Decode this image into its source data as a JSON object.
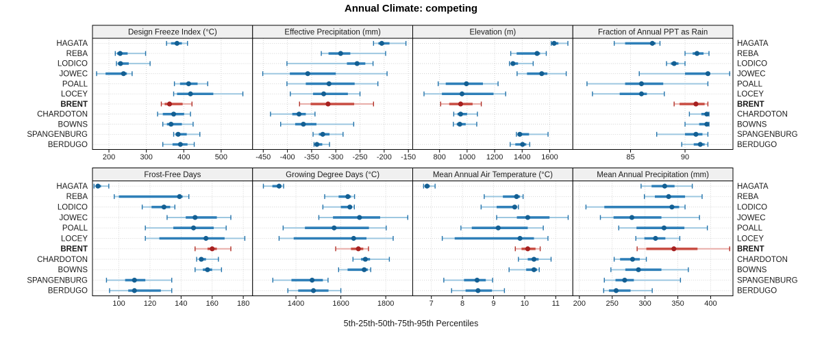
{
  "title": "Annual Climate: competing",
  "caption": "5th-25th-50th-75th-95th Percentiles",
  "colors": {
    "normal": {
      "range_5_95": "#9dc7e0",
      "box_25_75": "#2e7fb8",
      "median_dot": "#135f93",
      "cap": "#2272aa"
    },
    "highlight": {
      "range_5_95": "#e8aca7",
      "box_25_75": "#c94f45",
      "median_dot": "#a62020",
      "cap": "#b23027"
    },
    "grid": "#c9c9c9",
    "panel_border": "#000000",
    "header_bg": "#f0f0f0",
    "text": "#1a1a1a"
  },
  "chart_data": {
    "type": "trellis-dotplot-percentiles",
    "percentile_labels": [
      "5th",
      "25th",
      "50th",
      "75th",
      "95th"
    ],
    "layout": {
      "rows": 2,
      "cols": 4,
      "grid": "dotted",
      "site_labels": "both-sides"
    },
    "highlight_site": "BRENT",
    "sites": [
      "HAGATA",
      "REBA",
      "LODICO",
      "JOWEC",
      "POALL",
      "LOCEY",
      "BRENT",
      "CHARDOTON",
      "BOWNS",
      "SPANGENBURG",
      "BERDUGO"
    ],
    "panels": [
      {
        "label": "Design Freeze Index (°C)",
        "xlim": [
          156,
          584
        ],
        "ticks": [
          200,
          300,
          400,
          500
        ],
        "data": [
          [
            354,
            366,
            382,
            395,
            410
          ],
          [
            217,
            222,
            230,
            250,
            298
          ],
          [
            220,
            224,
            231,
            253,
            310
          ],
          [
            167,
            191,
            239,
            248,
            262
          ],
          [
            375,
            390,
            413,
            437,
            464
          ],
          [
            373,
            382,
            418,
            479,
            558
          ],
          [
            340,
            349,
            362,
            397,
            422
          ],
          [
            330,
            344,
            373,
            401,
            418
          ],
          [
            344,
            355,
            366,
            395,
            425
          ],
          [
            373,
            378,
            385,
            408,
            443
          ],
          [
            344,
            370,
            391,
            410,
            428
          ]
        ]
      },
      {
        "label": "Effective Precipitation (mm)",
        "xlim": [
          -472,
          -141
        ],
        "ticks": [
          -450,
          -400,
          -350,
          -300,
          -250,
          -200,
          -150
        ],
        "data": [
          [
            -222,
            -212,
            -205,
            -189,
            -155
          ],
          [
            -330,
            -315,
            -290,
            -270,
            -197
          ],
          [
            -401,
            -277,
            -256,
            -239,
            -223
          ],
          [
            -451,
            -395,
            -358,
            -300,
            -194
          ],
          [
            -401,
            -362,
            -314,
            -261,
            -213
          ],
          [
            -394,
            -347,
            -325,
            -275,
            -250
          ],
          [
            -375,
            -352,
            -316,
            -262,
            -222
          ],
          [
            -435,
            -390,
            -376,
            -362,
            -343
          ],
          [
            -414,
            -384,
            -367,
            -340,
            -263
          ],
          [
            -347,
            -335,
            -327,
            -313,
            -285
          ],
          [
            -345,
            -343,
            -339,
            -328,
            -313
          ]
        ]
      },
      {
        "label": "Elevation (m)",
        "xlim": [
          605,
          1768
        ],
        "ticks": [
          800,
          1000,
          1200,
          1400,
          1600
        ],
        "data": [
          [
            1611,
            1618,
            1632,
            1663,
            1732
          ],
          [
            1317,
            1360,
            1508,
            1530,
            1575
          ],
          [
            1308,
            1318,
            1333,
            1370,
            1480
          ],
          [
            1363,
            1435,
            1542,
            1583,
            1720
          ],
          [
            790,
            845,
            995,
            1115,
            1225
          ],
          [
            687,
            817,
            963,
            1192,
            1280
          ],
          [
            808,
            870,
            953,
            1040,
            1103
          ],
          [
            903,
            930,
            953,
            1000,
            1075
          ],
          [
            900,
            925,
            947,
            990,
            1070
          ],
          [
            1358,
            1370,
            1383,
            1450,
            1588
          ],
          [
            1313,
            1350,
            1403,
            1430,
            1455
          ]
        ]
      },
      {
        "label": "Fraction of Annual PPT as Rain",
        "xlim": [
          79.7,
          94.4
        ],
        "ticks": [
          85,
          90
        ],
        "data": [
          [
            83.5,
            84.5,
            87,
            87.3,
            87.7
          ],
          [
            90,
            90.7,
            91.1,
            91.7,
            92.2
          ],
          [
            88.3,
            88.7,
            89,
            89.4,
            90
          ],
          [
            85.8,
            90,
            92.1,
            92.3,
            94.1
          ],
          [
            81,
            84.5,
            86,
            88,
            92.1
          ],
          [
            81.5,
            84,
            86,
            86.5,
            88.1
          ],
          [
            89,
            89.5,
            91,
            91.8,
            92.1
          ],
          [
            90.4,
            91.5,
            92,
            92.1,
            92.2
          ],
          [
            90,
            91.3,
            92,
            92.1,
            92.2
          ],
          [
            87.4,
            90,
            91,
            91.6,
            92.1
          ],
          [
            89.7,
            90.8,
            91.4,
            91.8,
            92.1
          ]
        ]
      },
      {
        "label": "Frost-Free Days",
        "xlim": [
          83,
          186
        ],
        "ticks": [
          100,
          120,
          140,
          160,
          180
        ],
        "data": [
          [
            84,
            85.5,
            86.5,
            88.5,
            93.5
          ],
          [
            97,
            100,
            139,
            141,
            145
          ],
          [
            115,
            121,
            129,
            133,
            136
          ],
          [
            131,
            143,
            149,
            163,
            172
          ],
          [
            117,
            135,
            148,
            161,
            169
          ],
          [
            117,
            126,
            156,
            168,
            181
          ],
          [
            149,
            157,
            160,
            163,
            172
          ],
          [
            150,
            152,
            153,
            156,
            164
          ],
          [
            149,
            154,
            157,
            160,
            166
          ],
          [
            92,
            104,
            110,
            117,
            134
          ],
          [
            94,
            106,
            110,
            127,
            134
          ]
        ]
      },
      {
        "label": "Growing Degree Days (°C)",
        "xlim": [
          1207,
          1920
        ],
        "ticks": [
          1400,
          1600,
          1800
        ],
        "data": [
          [
            1255,
            1295,
            1325,
            1335,
            1345
          ],
          [
            1528,
            1590,
            1631,
            1645,
            1661
          ],
          [
            1520,
            1600,
            1640,
            1650,
            1660
          ],
          [
            1502,
            1565,
            1683,
            1775,
            1898
          ],
          [
            1343,
            1440,
            1570,
            1725,
            1802
          ],
          [
            1325,
            1390,
            1657,
            1714,
            1833
          ],
          [
            1577,
            1645,
            1678,
            1700,
            1723
          ],
          [
            1654,
            1690,
            1709,
            1730,
            1816
          ],
          [
            1590,
            1630,
            1704,
            1720,
            1733
          ],
          [
            1297,
            1380,
            1472,
            1520,
            1543
          ],
          [
            1364,
            1410,
            1478,
            1545,
            1600
          ]
        ]
      },
      {
        "label": "Mean Annual Air Temperature (°C)",
        "xlim": [
          6.4,
          11.55
        ],
        "ticks": [
          7,
          8,
          9,
          10,
          11
        ],
        "data": [
          [
            6.75,
            6.8,
            6.86,
            6.95,
            7.12
          ],
          [
            8.7,
            9.3,
            9.74,
            9.85,
            9.95
          ],
          [
            8.6,
            9.1,
            9.68,
            9.75,
            9.8
          ],
          [
            9.1,
            9.75,
            10.1,
            10.8,
            11.4
          ],
          [
            7.95,
            8.3,
            9.15,
            10.1,
            10.6
          ],
          [
            7.35,
            7.75,
            9.85,
            10.3,
            10.75
          ],
          [
            9.7,
            9.9,
            10.1,
            10.35,
            10.5
          ],
          [
            9.8,
            10.1,
            10.3,
            10.45,
            10.85
          ],
          [
            9.5,
            10.05,
            10.3,
            10.4,
            10.47
          ],
          [
            7.4,
            8.05,
            8.47,
            8.75,
            8.97
          ],
          [
            7.65,
            8.1,
            8.5,
            8.95,
            9.35
          ]
        ]
      },
      {
        "label": "Mean Annual Precipitation (mm)",
        "xlim": [
          190,
          434
        ],
        "ticks": [
          200,
          250,
          300,
          350,
          400
        ],
        "data": [
          [
            294,
            310,
            330,
            345,
            372
          ],
          [
            299,
            315,
            336,
            361,
            387
          ],
          [
            210,
            238,
            341,
            352,
            361
          ],
          [
            232,
            252,
            280,
            325,
            383
          ],
          [
            260,
            287,
            329,
            360,
            395
          ],
          [
            286,
            299,
            316,
            331,
            353
          ],
          [
            288,
            302,
            344,
            380,
            429
          ],
          [
            253,
            262,
            281,
            292,
            302
          ],
          [
            248,
            270,
            290,
            325,
            366
          ],
          [
            238,
            255,
            269,
            283,
            354
          ],
          [
            237,
            245,
            256,
            278,
            311
          ]
        ]
      }
    ]
  }
}
